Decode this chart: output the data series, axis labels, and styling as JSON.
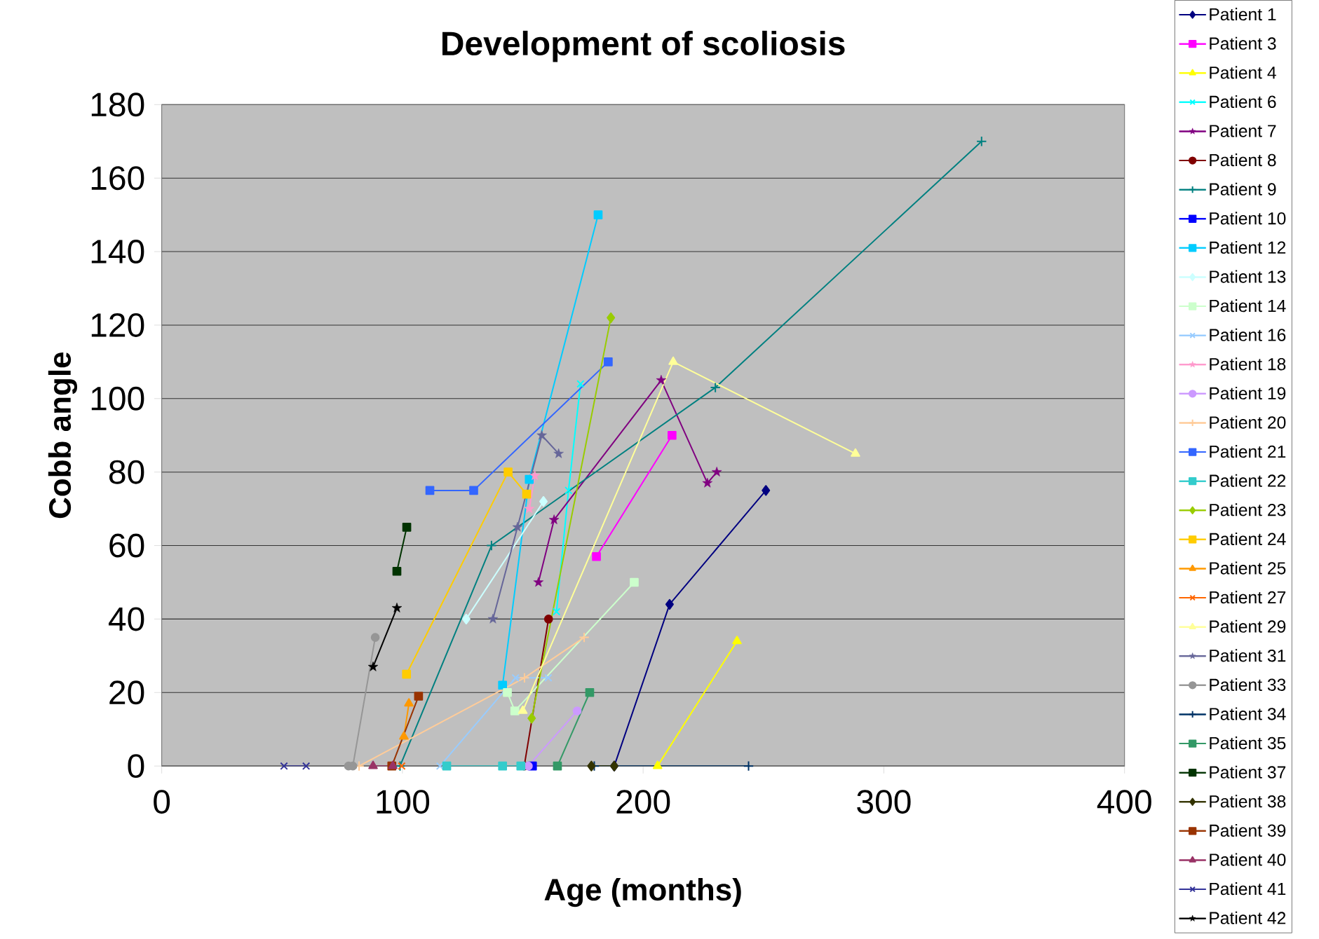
{
  "chart_data": {
    "type": "line",
    "title": "Development of scoliosis",
    "xlabel": "Age (months)",
    "ylabel": "Cobb angle",
    "xlim": [
      0,
      400
    ],
    "ylim": [
      0,
      180
    ],
    "xticks": [
      0,
      100,
      200,
      300,
      400
    ],
    "yticks": [
      0,
      20,
      40,
      60,
      80,
      100,
      120,
      140,
      160,
      180
    ],
    "grid": "y",
    "legend": "right",
    "series": [
      {
        "name": "Patient 1",
        "color": "#000080",
        "marker": "diamond",
        "x": [
          188,
          211,
          251
        ],
        "values": [
          0,
          44,
          75
        ]
      },
      {
        "name": "Patient 3",
        "color": "#ff00ff",
        "marker": "square",
        "x": [
          180.6,
          212
        ],
        "values": [
          57,
          90
        ]
      },
      {
        "name": "Patient 4",
        "color": "#ffff00",
        "marker": "triangle",
        "x": [
          206,
          239
        ],
        "values": [
          0,
          34
        ]
      },
      {
        "name": "Patient 6",
        "color": "#00ffff",
        "marker": "cross",
        "x": [
          164,
          169,
          174
        ],
        "values": [
          42,
          75,
          104
        ]
      },
      {
        "name": "Patient 7",
        "color": "#800080",
        "marker": "star",
        "x": [
          156.5,
          163,
          207.5,
          226.7,
          230.6
        ],
        "values": [
          50,
          67,
          105,
          77,
          80
        ]
      },
      {
        "name": "Patient 8",
        "color": "#800000",
        "marker": "circle",
        "x": [
          150.6,
          160.7
        ],
        "values": [
          0,
          40
        ]
      },
      {
        "name": "Patient 9",
        "color": "#008080",
        "marker": "plus",
        "x": [
          99,
          137,
          230,
          340.6
        ],
        "values": [
          0,
          60,
          103,
          170
        ]
      },
      {
        "name": "Patient 10",
        "color": "#0000ff",
        "marker": "square",
        "x": [
          154
        ],
        "values": [
          0
        ]
      },
      {
        "name": "Patient 12",
        "color": "#00ccff",
        "marker": "square",
        "x": [
          141.6,
          152.7,
          181.3
        ],
        "values": [
          22,
          78,
          150
        ]
      },
      {
        "name": "Patient 13",
        "color": "#ccffff",
        "marker": "diamond",
        "x": [
          126.5,
          158.6
        ],
        "values": [
          40,
          72
        ]
      },
      {
        "name": "Patient 14",
        "color": "#ccffcc",
        "marker": "square",
        "x": [
          143.6,
          146.7,
          196.3
        ],
        "values": [
          20,
          15,
          50
        ]
      },
      {
        "name": "Patient 16",
        "color": "#99ccff",
        "marker": "cross",
        "x": [
          115.6,
          147,
          160.6
        ],
        "values": [
          0,
          24,
          24
        ]
      },
      {
        "name": "Patient 18",
        "color": "#ff99cc",
        "marker": "star",
        "x": [
          152.7,
          155
        ],
        "values": [
          70,
          79
        ]
      },
      {
        "name": "Patient 19",
        "color": "#cc99ff",
        "marker": "circle",
        "x": [
          152.3,
          172.6
        ],
        "values": [
          0,
          15
        ]
      },
      {
        "name": "Patient 20",
        "color": "#ffcc99",
        "marker": "plus",
        "x": [
          82,
          150.7,
          175.5
        ],
        "values": [
          0,
          24,
          35
        ]
      },
      {
        "name": "Patient 21",
        "color": "#3366ff",
        "marker": "square",
        "x": [
          111.4,
          129.6,
          185.5
        ],
        "values": [
          75,
          75,
          110
        ]
      },
      {
        "name": "Patient 22",
        "color": "#33cccc",
        "marker": "square",
        "x": [
          118.4,
          141.6,
          149.2
        ],
        "values": [
          0,
          0,
          0
        ]
      },
      {
        "name": "Patient 23",
        "color": "#99cc00",
        "marker": "diamond",
        "x": [
          153.7,
          186.6
        ],
        "values": [
          13,
          122
        ]
      },
      {
        "name": "Patient 24",
        "color": "#ffcc00",
        "marker": "square",
        "x": [
          101.7,
          143.9,
          151.6
        ],
        "values": [
          25,
          80,
          74
        ]
      },
      {
        "name": "Patient 25",
        "color": "#ff9900",
        "marker": "triangle",
        "x": [
          100.6,
          102.7
        ],
        "values": [
          8,
          17
        ]
      },
      {
        "name": "Patient 27",
        "color": "#ff6600",
        "marker": "cross",
        "x": [
          99.7
        ],
        "values": [
          0
        ]
      },
      {
        "name": "Patient 29",
        "color": "#ffff99",
        "marker": "triangle",
        "x": [
          150,
          212.5,
          288.2
        ],
        "values": [
          15,
          110,
          85
        ]
      },
      {
        "name": "Patient 31",
        "color": "#666699",
        "marker": "star",
        "x": [
          137.6,
          147.8,
          157.9,
          164.9
        ],
        "values": [
          40,
          65,
          90,
          85
        ]
      },
      {
        "name": "Patient 33",
        "color": "#969696",
        "marker": "circle",
        "x": [
          77.6,
          79.4,
          88.7
        ],
        "values": [
          0,
          0,
          35
        ]
      },
      {
        "name": "Patient 34",
        "color": "#003366",
        "marker": "plus",
        "x": [
          179.7,
          243.8
        ],
        "values": [
          0,
          0
        ]
      },
      {
        "name": "Patient 35",
        "color": "#339966",
        "marker": "square",
        "x": [
          164.4,
          177.8
        ],
        "values": [
          0,
          20
        ]
      },
      {
        "name": "Patient 37",
        "color": "#003300",
        "marker": "square",
        "x": [
          97.7,
          101.8
        ],
        "values": [
          53,
          65
        ]
      },
      {
        "name": "Patient 38",
        "color": "#333300",
        "marker": "diamond",
        "x": [
          178.5,
          188
        ],
        "values": [
          0,
          0
        ]
      },
      {
        "name": "Patient 39",
        "color": "#993300",
        "marker": "square",
        "x": [
          95.6,
          106.7
        ],
        "values": [
          0,
          19
        ]
      },
      {
        "name": "Patient 40",
        "color": "#993366",
        "marker": "triangle",
        "x": [
          87.8,
          96
        ],
        "values": [
          0,
          0
        ]
      },
      {
        "name": "Patient 41",
        "color": "#333399",
        "marker": "cross",
        "x": [
          50.8,
          60
        ],
        "values": [
          0,
          0
        ]
      },
      {
        "name": "Patient 42",
        "color": "#000000",
        "marker": "star",
        "x": [
          87.8,
          97.7
        ],
        "values": [
          27,
          43
        ]
      }
    ]
  }
}
